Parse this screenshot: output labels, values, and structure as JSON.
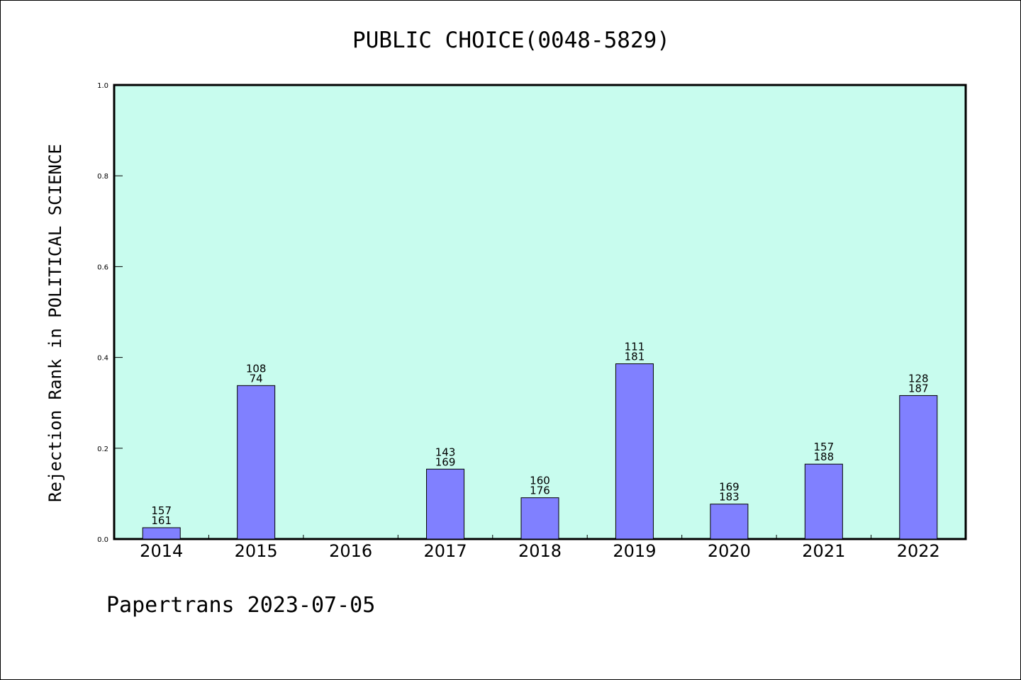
{
  "chart_data": {
    "type": "bar",
    "title": "PUBLIC CHOICE(0048-5829)",
    "xlabel": "",
    "ylabel": "Rejection Rank in POLITICAL SCIENCE",
    "ylim": [
      0,
      1.0
    ],
    "yticks": [
      "0.0",
      "0.2",
      "0.4",
      "0.6",
      "0.8",
      "1.0"
    ],
    "grid": false,
    "categories": [
      "2014",
      "2015",
      "2016",
      "2017",
      "2018",
      "2019",
      "2020",
      "2021",
      "2022"
    ],
    "values": [
      0.025,
      0.338,
      0,
      0.154,
      0.091,
      0.386,
      0.077,
      0.165,
      0.316
    ],
    "bar_labels": [
      [
        "157",
        "161"
      ],
      [
        "108",
        "74"
      ],
      null,
      [
        "143",
        "169"
      ],
      [
        "160",
        "176"
      ],
      [
        "111",
        "181"
      ],
      [
        "169",
        "183"
      ],
      [
        "157",
        "188"
      ],
      [
        "128",
        "187"
      ]
    ],
    "bar_color": "#8080ff",
    "plot_background": "#c8fcee"
  },
  "footer": "Papertrans 2023-07-05"
}
